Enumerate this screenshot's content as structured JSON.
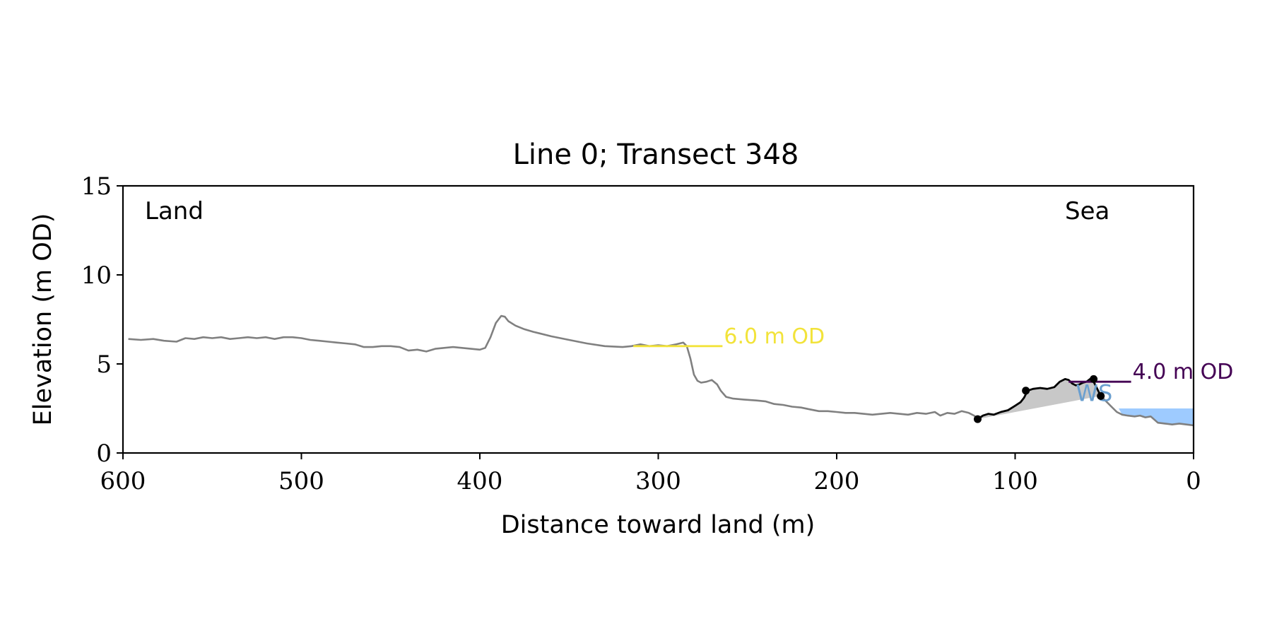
{
  "chart_data": {
    "type": "line",
    "title": "Line 0; Transect 348",
    "xlabel": "Distance toward land (m)",
    "ylabel": "Elevation (m OD)",
    "xlim": [
      600,
      0
    ],
    "ylim": [
      0,
      15
    ],
    "x_ticks": [
      600,
      500,
      400,
      300,
      200,
      100,
      0
    ],
    "y_ticks": [
      0,
      5,
      10,
      15
    ],
    "x_tick_labels": [
      "600",
      "500",
      "400",
      "300",
      "200",
      "100",
      "0"
    ],
    "y_tick_labels": [
      "0",
      "5",
      "10",
      "15"
    ],
    "grid": false,
    "land_label": "Land",
    "sea_label": "Sea",
    "colors": {
      "profile": "#808080",
      "dune_profile": "#000000",
      "fill": "#c8c8c8",
      "threshold_6": "#f2e33a",
      "threshold_4": "#440154",
      "water": "#9ecbff",
      "ws_label": "#6a9fcf"
    },
    "profile": {
      "x": [
        597,
        590,
        583,
        577,
        570,
        565,
        560,
        555,
        550,
        545,
        540,
        535,
        530,
        525,
        520,
        515,
        510,
        505,
        500,
        495,
        490,
        485,
        480,
        475,
        470,
        465,
        460,
        455,
        450,
        445,
        440,
        435,
        430,
        425,
        420,
        415,
        410,
        405,
        400,
        397,
        394,
        391,
        388,
        386,
        384,
        380,
        375,
        370,
        360,
        350,
        340,
        330,
        320,
        315,
        310,
        305,
        300,
        295,
        290,
        286,
        284,
        282,
        280,
        278,
        276,
        273,
        270,
        267,
        265,
        262,
        258,
        252,
        245,
        240,
        235,
        230,
        225,
        220,
        215,
        210,
        205,
        200,
        195,
        190,
        185,
        180,
        175,
        170,
        165,
        160,
        155,
        150,
        145,
        142,
        138,
        134,
        130,
        126,
        123,
        121
      ],
      "y": [
        6.4,
        6.35,
        6.4,
        6.3,
        6.25,
        6.45,
        6.4,
        6.5,
        6.45,
        6.5,
        6.4,
        6.45,
        6.5,
        6.45,
        6.5,
        6.4,
        6.5,
        6.5,
        6.45,
        6.35,
        6.3,
        6.25,
        6.2,
        6.15,
        6.1,
        5.95,
        5.95,
        6.0,
        6.0,
        5.95,
        5.75,
        5.8,
        5.7,
        5.85,
        5.9,
        5.95,
        5.9,
        5.85,
        5.8,
        5.9,
        6.5,
        7.3,
        7.7,
        7.65,
        7.4,
        7.15,
        6.95,
        6.8,
        6.55,
        6.35,
        6.15,
        6.0,
        5.95,
        6.0,
        6.1,
        6.0,
        6.05,
        6.0,
        6.1,
        6.2,
        6.0,
        5.3,
        4.4,
        4.05,
        3.95,
        4.0,
        4.1,
        3.85,
        3.5,
        3.15,
        3.05,
        3.0,
        2.95,
        2.9,
        2.75,
        2.7,
        2.6,
        2.55,
        2.45,
        2.35,
        2.35,
        2.3,
        2.25,
        2.25,
        2.2,
        2.15,
        2.2,
        2.25,
        2.2,
        2.15,
        2.25,
        2.2,
        2.3,
        2.1,
        2.25,
        2.2,
        2.35,
        2.25,
        2.1,
        1.9
      ]
    },
    "dune_profile": {
      "x": [
        121,
        118,
        115,
        112,
        108,
        104,
        100,
        97,
        95,
        93,
        90,
        86,
        82,
        78,
        75,
        72,
        70,
        68,
        66,
        64,
        62,
        60,
        58,
        56,
        54,
        52
      ],
      "y": [
        1.9,
        2.1,
        2.2,
        2.15,
        2.3,
        2.4,
        2.65,
        2.85,
        3.1,
        3.5,
        3.6,
        3.65,
        3.6,
        3.7,
        4.0,
        4.15,
        4.1,
        3.9,
        3.8,
        3.85,
        3.95,
        4.0,
        4.15,
        4.0,
        3.6,
        3.2
      ]
    },
    "sea_profile": {
      "x": [
        52,
        49,
        46,
        43,
        40,
        37,
        33,
        30,
        27,
        24,
        20,
        16,
        12,
        8,
        4,
        0
      ],
      "y": [
        3.2,
        2.9,
        2.6,
        2.3,
        2.15,
        2.1,
        2.05,
        2.1,
        2.0,
        2.05,
        1.7,
        1.65,
        1.6,
        1.65,
        1.6,
        1.55
      ]
    },
    "dune_fill_base": {
      "x": [
        121,
        55
      ],
      "y": [
        1.9,
        3.15
      ]
    },
    "dune_markers": {
      "x": [
        121,
        94,
        56,
        52
      ],
      "y": [
        1.9,
        3.5,
        4.15,
        3.2
      ]
    },
    "thresholds": [
      {
        "label": "6.0 m OD",
        "y": 6.0,
        "x_start": 314,
        "x_end": 264
      },
      {
        "label": "4.0 m OD",
        "y": 4.0,
        "x_start": 70,
        "x_end": 35
      }
    ],
    "water": {
      "label": "WS",
      "y_level": 2.5,
      "x_start": 42,
      "x_end": 0,
      "label_x": 66,
      "label_y": 3.4
    }
  }
}
